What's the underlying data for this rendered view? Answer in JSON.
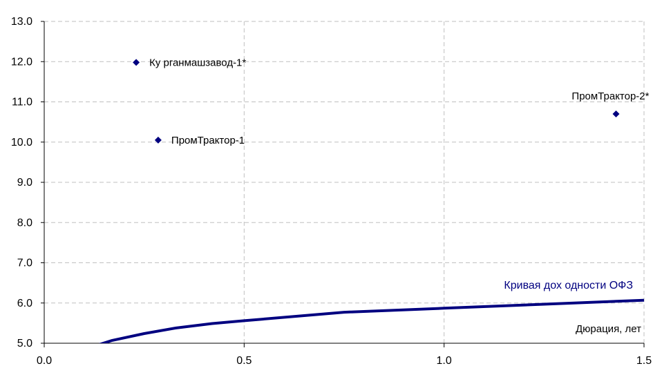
{
  "chart_data": {
    "type": "scatter",
    "xlim": [
      0.0,
      1.5
    ],
    "ylim": [
      5.0,
      13.0
    ],
    "x_ticks": [
      "0.0",
      "0.5",
      "1.0",
      "1.5"
    ],
    "y_ticks": [
      "5.0",
      "6.0",
      "7.0",
      "8.0",
      "9.0",
      "10.0",
      "11.0",
      "12.0",
      "13.0"
    ],
    "grid": true,
    "xlabel": "Дюрация, лет",
    "points": [
      {
        "label": "Ку рганмашзавод-1*",
        "x": 0.23,
        "y": 11.98
      },
      {
        "label": "ПромТрактор-1",
        "x": 0.285,
        "y": 10.05
      },
      {
        "label": "ПромТрактор-2*",
        "x": 1.43,
        "y": 10.7
      }
    ],
    "curve": {
      "name": "Кривая дох одности ОФЗ",
      "x": [
        0.1,
        0.17,
        0.25,
        0.33,
        0.42,
        0.5,
        0.75,
        1.0,
        1.25,
        1.5
      ],
      "y": [
        4.85,
        5.07,
        5.24,
        5.38,
        5.49,
        5.56,
        5.77,
        5.87,
        5.97,
        6.07
      ]
    },
    "colors": {
      "marker": "#000080",
      "curve": "#000080",
      "grid": "#bfbfbf"
    }
  }
}
